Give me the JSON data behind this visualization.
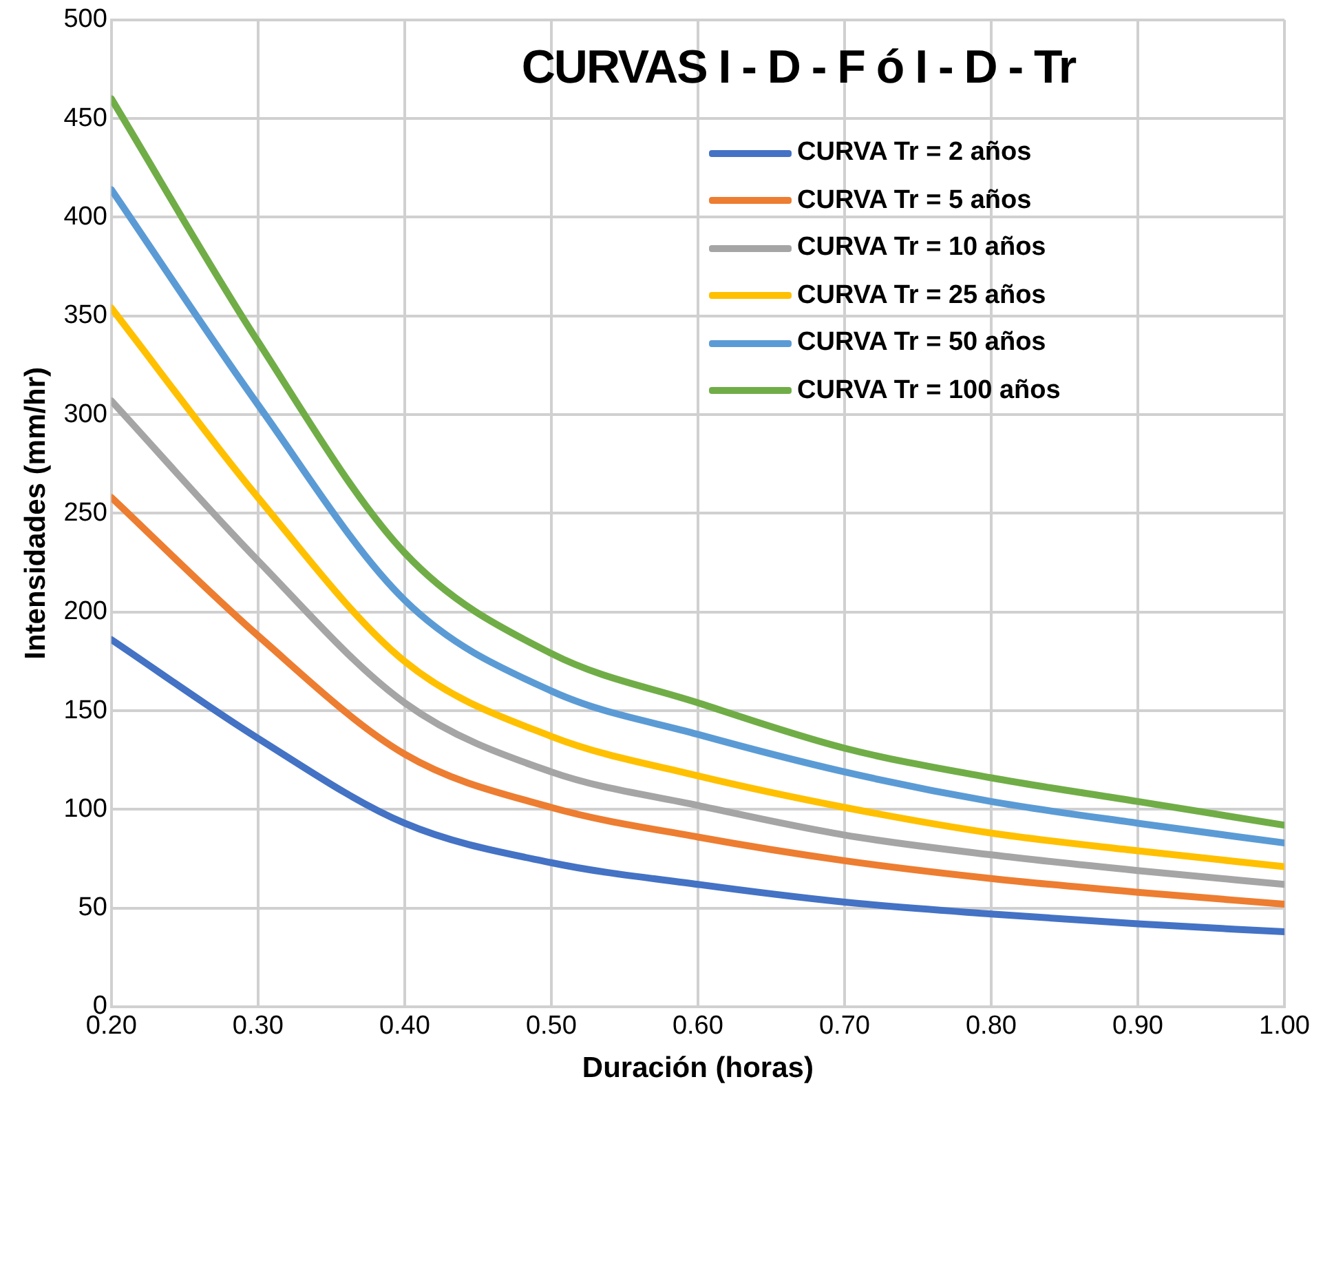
{
  "chart_data": {
    "type": "line",
    "title": "CURVAS I - D - F ó I - D - Tr",
    "xlabel": "Duración (horas)",
    "ylabel": "Intensidades (mm/hr)",
    "x": [
      0.2,
      0.3,
      0.4,
      0.5,
      0.6,
      0.7,
      0.8,
      0.9,
      1.0
    ],
    "xlim": [
      0.2,
      1.0
    ],
    "xticks": [
      {
        "value": 0.2,
        "label": "0.20"
      },
      {
        "value": 0.3,
        "label": "0.30"
      },
      {
        "value": 0.4,
        "label": "0.40"
      },
      {
        "value": 0.5,
        "label": "0.50"
      },
      {
        "value": 0.6,
        "label": "0.60"
      },
      {
        "value": 0.7,
        "label": "0.70"
      },
      {
        "value": 0.8,
        "label": "0.80"
      },
      {
        "value": 0.9,
        "label": "0.90"
      },
      {
        "value": 1.0,
        "label": "1.00"
      }
    ],
    "ylim": [
      0,
      500
    ],
    "yticks": [
      0,
      50,
      100,
      150,
      200,
      250,
      300,
      350,
      400,
      450,
      500
    ],
    "grid": true,
    "legend": "top right",
    "marker": "none",
    "line_style": "solid",
    "series": [
      {
        "name": "CURVA Tr = 2 años",
        "color": "#4472c4",
        "values": [
          186,
          136,
          93,
          73,
          62,
          53,
          47,
          42,
          38
        ]
      },
      {
        "name": "CURVA Tr = 5 años",
        "color": "#ed7d31",
        "values": [
          258,
          188,
          128,
          101,
          86,
          74,
          65,
          58,
          52
        ]
      },
      {
        "name": "CURVA Tr = 10 años",
        "color": "#a5a5a5",
        "values": [
          307,
          226,
          154,
          119,
          102,
          87,
          77,
          69,
          62
        ]
      },
      {
        "name": "CURVA Tr = 25 años",
        "color": "#ffc000",
        "values": [
          354,
          258,
          175,
          137,
          117,
          101,
          88,
          79,
          71
        ]
      },
      {
        "name": "CURVA Tr = 50 años",
        "color": "#5b9bd5",
        "values": [
          414,
          305,
          206,
          160,
          138,
          119,
          104,
          93,
          83
        ]
      },
      {
        "name": "CURVA Tr = 100 años",
        "color": "#70ad47",
        "values": [
          460,
          337,
          230,
          179,
          154,
          131,
          116,
          104,
          92
        ]
      }
    ]
  }
}
